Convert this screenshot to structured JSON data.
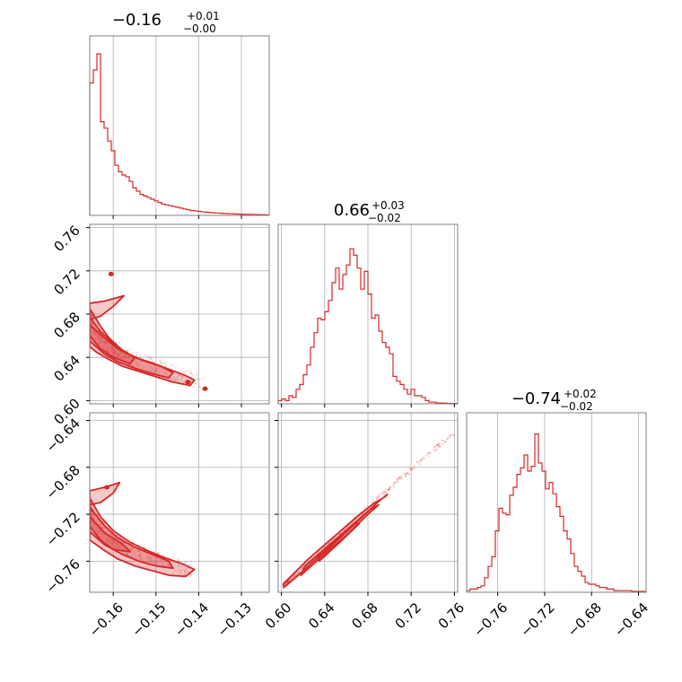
{
  "chart_data": {
    "type": "corner",
    "color": "#d62728",
    "grid": true,
    "titles": [
      {
        "main": "−0.16",
        "plus": "+0.01",
        "minus": "−0.00"
      },
      {
        "main": "0.66",
        "plus": "+0.03",
        "minus": "−0.02"
      },
      {
        "main": "−0.74",
        "plus": "+0.02",
        "minus": "−0.02"
      }
    ],
    "params": [
      {
        "range": [
          -0.1655,
          -0.1235
        ],
        "ticks": [
          -0.16,
          -0.15,
          -0.14,
          -0.13
        ],
        "tick_labels": [
          "−0.16",
          "−0.15",
          "−0.14",
          "−0.13"
        ]
      },
      {
        "range": [
          0.597,
          0.763
        ],
        "ticks": [
          0.6,
          0.64,
          0.68,
          0.72,
          0.76
        ],
        "tick_labels": [
          "0.60",
          "0.64",
          "0.68",
          "0.72",
          "0.76"
        ]
      },
      {
        "range": [
          -0.7865,
          -0.6335
        ],
        "ticks": [
          -0.76,
          -0.72,
          -0.68,
          -0.64
        ],
        "tick_labels": [
          "−0.76",
          "−0.72",
          "−0.68",
          "−0.64"
        ]
      }
    ],
    "histograms": [
      {
        "name": "hist-param1",
        "range": [
          -0.1655,
          -0.1235
        ],
        "counts": [
          0.82,
          0.9,
          1.0,
          0.58,
          0.54,
          0.46,
          0.4,
          0.31,
          0.27,
          0.25,
          0.24,
          0.21,
          0.17,
          0.15,
          0.13,
          0.12,
          0.11,
          0.1,
          0.09,
          0.08,
          0.07,
          0.065,
          0.06,
          0.055,
          0.05,
          0.045,
          0.04,
          0.035,
          0.03,
          0.028,
          0.025,
          0.022,
          0.02,
          0.018,
          0.016,
          0.015,
          0.013,
          0.012,
          0.011,
          0.01,
          0.009,
          0.008,
          0.007,
          0.006,
          0.006,
          0.005,
          0.005,
          0.004,
          0.004,
          0.003
        ]
      },
      {
        "name": "hist-param2",
        "range": [
          0.597,
          0.763
        ],
        "counts": [
          0.02,
          0.03,
          0.02,
          0.05,
          0.04,
          0.09,
          0.12,
          0.18,
          0.24,
          0.35,
          0.44,
          0.53,
          0.52,
          0.57,
          0.64,
          0.75,
          0.84,
          0.71,
          0.8,
          0.86,
          0.96,
          0.92,
          0.84,
          0.71,
          0.82,
          0.68,
          0.53,
          0.55,
          0.45,
          0.38,
          0.35,
          0.31,
          0.17,
          0.14,
          0.12,
          0.09,
          0.06,
          0.09,
          0.05,
          0.05,
          0.04,
          0.02,
          0.01,
          0.01,
          0.005,
          0.005,
          0.004,
          0.003,
          0.002,
          0.002
        ]
      },
      {
        "name": "hist-param3",
        "range": [
          -0.7865,
          -0.6335
        ],
        "counts": [
          0.01,
          0.02,
          0.02,
          0.03,
          0.04,
          0.09,
          0.16,
          0.22,
          0.38,
          0.52,
          0.49,
          0.48,
          0.6,
          0.65,
          0.73,
          0.77,
          0.85,
          0.75,
          0.78,
          0.98,
          0.8,
          0.75,
          0.64,
          0.68,
          0.61,
          0.53,
          0.47,
          0.38,
          0.33,
          0.24,
          0.16,
          0.13,
          0.1,
          0.06,
          0.05,
          0.05,
          0.04,
          0.03,
          0.03,
          0.02,
          0.02,
          0.01,
          0.01,
          0.01,
          0.01,
          0.01,
          0.005,
          0.005,
          0.005,
          0.005
        ]
      }
    ],
    "pairs": [
      {
        "name": "pair-param1-param2",
        "xi": 0,
        "yi": 1,
        "curve": [
          [
            -0.1655,
            0.675
          ],
          [
            -0.163,
            0.655
          ],
          [
            -0.16,
            0.645
          ],
          [
            -0.157,
            0.638
          ],
          [
            -0.154,
            0.633
          ],
          [
            -0.15,
            0.628
          ],
          [
            -0.146,
            0.622
          ],
          [
            -0.142,
            0.617
          ],
          [
            -0.139,
            0.613
          ]
        ],
        "contours": [
          [
            [
              -0.1655,
              0.685
            ],
            [
              -0.163,
              0.669
            ],
            [
              -0.161,
              0.658
            ],
            [
              -0.158,
              0.647
            ],
            [
              -0.155,
              0.64
            ],
            [
              -0.151,
              0.635
            ],
            [
              -0.147,
              0.629
            ],
            [
              -0.143,
              0.623
            ],
            [
              -0.141,
              0.619
            ],
            [
              -0.142,
              0.614
            ],
            [
              -0.146,
              0.617
            ],
            [
              -0.15,
              0.622
            ],
            [
              -0.154,
              0.627
            ],
            [
              -0.158,
              0.632
            ],
            [
              -0.161,
              0.638
            ],
            [
              -0.164,
              0.645
            ],
            [
              -0.1655,
              0.65
            ]
          ],
          [
            [
              -0.1655,
              0.677
            ],
            [
              -0.163,
              0.664
            ],
            [
              -0.16,
              0.653
            ],
            [
              -0.157,
              0.644
            ],
            [
              -0.153,
              0.637
            ],
            [
              -0.149,
              0.632
            ],
            [
              -0.146,
              0.626
            ],
            [
              -0.147,
              0.621
            ],
            [
              -0.151,
              0.625
            ],
            [
              -0.155,
              0.63
            ],
            [
              -0.159,
              0.636
            ],
            [
              -0.162,
              0.643
            ],
            [
              -0.1655,
              0.655
            ]
          ],
          [
            [
              -0.1655,
              0.67
            ],
            [
              -0.162,
              0.658
            ],
            [
              -0.159,
              0.648
            ],
            [
              -0.155,
              0.64
            ],
            [
              -0.156,
              0.634
            ],
            [
              -0.16,
              0.64
            ],
            [
              -0.163,
              0.648
            ],
            [
              -0.1655,
              0.66
            ]
          ],
          [
            [
              -0.1655,
              0.69
            ],
            [
              -0.162,
              0.692
            ],
            [
              -0.1575,
              0.697
            ],
            [
              -0.16,
              0.687
            ],
            [
              -0.163,
              0.678
            ],
            [
              -0.1655,
              0.675
            ]
          ]
        ],
        "blobs": [
          [
            -0.1605,
            0.717
          ],
          [
            -0.1425,
            0.617
          ],
          [
            -0.1385,
            0.611
          ]
        ]
      },
      {
        "name": "pair-param1-param3",
        "xi": 0,
        "yi": 2,
        "curve": [
          [
            -0.1655,
            -0.718
          ],
          [
            -0.163,
            -0.733
          ],
          [
            -0.16,
            -0.744
          ],
          [
            -0.157,
            -0.751
          ],
          [
            -0.154,
            -0.756
          ],
          [
            -0.15,
            -0.761
          ],
          [
            -0.146,
            -0.766
          ],
          [
            -0.142,
            -0.77
          ]
        ],
        "contours": [
          [
            [
              -0.1655,
              -0.706
            ],
            [
              -0.163,
              -0.722
            ],
            [
              -0.16,
              -0.734
            ],
            [
              -0.156,
              -0.744
            ],
            [
              -0.152,
              -0.751
            ],
            [
              -0.148,
              -0.757
            ],
            [
              -0.144,
              -0.762
            ],
            [
              -0.141,
              -0.767
            ],
            [
              -0.143,
              -0.773
            ],
            [
              -0.147,
              -0.772
            ],
            [
              -0.151,
              -0.768
            ],
            [
              -0.155,
              -0.764
            ],
            [
              -0.159,
              -0.758
            ],
            [
              -0.162,
              -0.751
            ],
            [
              -0.1655,
              -0.742
            ]
          ],
          [
            [
              -0.1655,
              -0.714
            ],
            [
              -0.162,
              -0.73
            ],
            [
              -0.159,
              -0.74
            ],
            [
              -0.155,
              -0.748
            ],
            [
              -0.151,
              -0.754
            ],
            [
              -0.147,
              -0.76
            ],
            [
              -0.146,
              -0.766
            ],
            [
              -0.15,
              -0.764
            ],
            [
              -0.154,
              -0.76
            ],
            [
              -0.158,
              -0.754
            ],
            [
              -0.162,
              -0.746
            ],
            [
              -0.1655,
              -0.735
            ]
          ],
          [
            [
              -0.1655,
              -0.722
            ],
            [
              -0.162,
              -0.736
            ],
            [
              -0.158,
              -0.745
            ],
            [
              -0.156,
              -0.752
            ],
            [
              -0.16,
              -0.75
            ],
            [
              -0.163,
              -0.742
            ],
            [
              -0.1655,
              -0.73
            ]
          ],
          [
            [
              -0.1655,
              -0.7
            ],
            [
              -0.162,
              -0.697
            ],
            [
              -0.1585,
              -0.693
            ],
            [
              -0.16,
              -0.702
            ],
            [
              -0.163,
              -0.71
            ],
            [
              -0.1655,
              -0.712
            ]
          ]
        ],
        "blobs": [
          [
            -0.1615,
            -0.697
          ]
        ]
      },
      {
        "name": "pair-param2-param3",
        "xi": 1,
        "yi": 2,
        "curve": [
          [
            0.603,
            -0.7805
          ],
          [
            0.625,
            -0.763
          ],
          [
            0.645,
            -0.745
          ],
          [
            0.665,
            -0.727
          ],
          [
            0.685,
            -0.71
          ],
          [
            0.705,
            -0.694
          ],
          [
            0.725,
            -0.678
          ],
          [
            0.745,
            -0.662
          ],
          [
            0.758,
            -0.652
          ]
        ],
        "contours": [
          [
            [
              0.602,
              -0.7825
            ],
            [
              0.617,
              -0.771
            ],
            [
              0.63,
              -0.76
            ],
            [
              0.645,
              -0.748
            ],
            [
              0.66,
              -0.735
            ],
            [
              0.675,
              -0.722
            ],
            [
              0.69,
              -0.709
            ],
            [
              0.698,
              -0.703
            ],
            [
              0.696,
              -0.705
            ],
            [
              0.685,
              -0.711
            ],
            [
              0.67,
              -0.722
            ],
            [
              0.655,
              -0.734
            ],
            [
              0.64,
              -0.746
            ],
            [
              0.625,
              -0.758
            ],
            [
              0.612,
              -0.77
            ],
            [
              0.602,
              -0.779
            ]
          ],
          [
            [
              0.618,
              -0.772
            ],
            [
              0.64,
              -0.754
            ],
            [
              0.66,
              -0.738
            ],
            [
              0.68,
              -0.72
            ],
            [
              0.69,
              -0.712
            ],
            [
              0.682,
              -0.716
            ],
            [
              0.662,
              -0.732
            ],
            [
              0.642,
              -0.748
            ],
            [
              0.622,
              -0.764
            ]
          ],
          [
            [
              0.635,
              -0.76
            ],
            [
              0.655,
              -0.743
            ],
            [
              0.672,
              -0.728
            ],
            [
              0.668,
              -0.728
            ],
            [
              0.65,
              -0.742
            ],
            [
              0.634,
              -0.755
            ]
          ]
        ],
        "blobs": []
      }
    ]
  }
}
